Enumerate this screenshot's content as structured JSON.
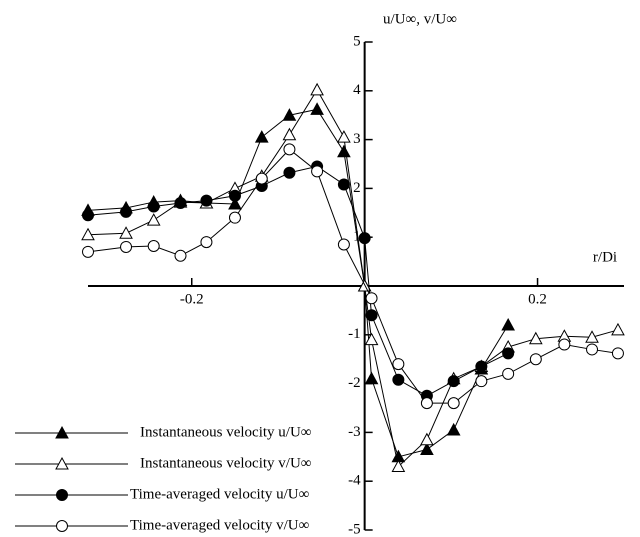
{
  "chart_data": {
    "type": "line",
    "y_label": "u/U∞, v/U∞",
    "x_label": "r/Di",
    "xlim": [
      -0.32,
      0.3
    ],
    "ylim": [
      -5,
      5
    ],
    "xticks": [
      -0.2,
      0.2
    ],
    "yticks": [
      -5,
      -4,
      -3,
      -2,
      -1,
      1,
      2,
      3,
      4,
      5
    ],
    "color": "#000000",
    "series": [
      {
        "name": "Instantaneous velocity u/U∞",
        "marker": "triangle",
        "filled": true,
        "x": [
          -0.32,
          -0.276,
          -0.244,
          -0.213,
          -0.183,
          -0.15,
          -0.119,
          -0.087,
          -0.055,
          -0.024,
          0,
          0.008,
          0.039,
          0.072,
          0.103,
          0.135,
          0.166
        ],
        "values": [
          1.55,
          1.6,
          1.72,
          1.75,
          1.7,
          1.68,
          3.05,
          3.5,
          3.62,
          2.75,
          0,
          -1.9,
          -3.5,
          -3.35,
          -2.95,
          -1.7,
          -0.8
        ]
      },
      {
        "name": "Instantaneous velocity v/U∞",
        "marker": "triangle",
        "filled": false,
        "x": [
          -0.32,
          -0.276,
          -0.244,
          -0.213,
          -0.183,
          -0.15,
          -0.119,
          -0.087,
          -0.055,
          -0.024,
          0,
          0.008,
          0.039,
          0.072,
          0.103,
          0.135,
          0.166,
          0.198,
          0.231,
          0.263,
          0.293
        ],
        "values": [
          1.05,
          1.08,
          1.35,
          1.72,
          1.7,
          2.0,
          2.25,
          3.1,
          4.02,
          3.05,
          0,
          -1.1,
          -3.7,
          -3.15,
          -1.9,
          -1.65,
          -1.25,
          -1.08,
          -1.03,
          -1.05,
          -0.9
        ]
      },
      {
        "name": "Time-averaged velocity u/U∞",
        "marker": "circle",
        "filled": true,
        "x": [
          -0.32,
          -0.276,
          -0.244,
          -0.213,
          -0.183,
          -0.15,
          -0.119,
          -0.087,
          -0.055,
          -0.024,
          0,
          0.008,
          0.039,
          0.072,
          0.103,
          0.135,
          0.166
        ],
        "values": [
          1.45,
          1.52,
          1.63,
          1.7,
          1.75,
          1.85,
          2.05,
          2.32,
          2.45,
          2.08,
          0.98,
          -0.6,
          -1.92,
          -2.25,
          -1.95,
          -1.65,
          -1.38
        ]
      },
      {
        "name": "Time-averaged velocity v/U∞",
        "marker": "circle",
        "filled": false,
        "x": [
          -0.32,
          -0.276,
          -0.244,
          -0.213,
          -0.183,
          -0.15,
          -0.119,
          -0.087,
          -0.055,
          -0.024,
          0.008,
          0.039,
          0.072,
          0.103,
          0.135,
          0.166,
          0.198,
          0.231,
          0.263,
          0.293
        ],
        "values": [
          0.7,
          0.8,
          0.82,
          0.62,
          0.9,
          1.4,
          2.2,
          2.8,
          2.35,
          0.85,
          -0.25,
          -1.6,
          -2.4,
          -2.4,
          -1.95,
          -1.8,
          -1.5,
          -1.2,
          -1.3,
          -1.38
        ]
      }
    ]
  }
}
